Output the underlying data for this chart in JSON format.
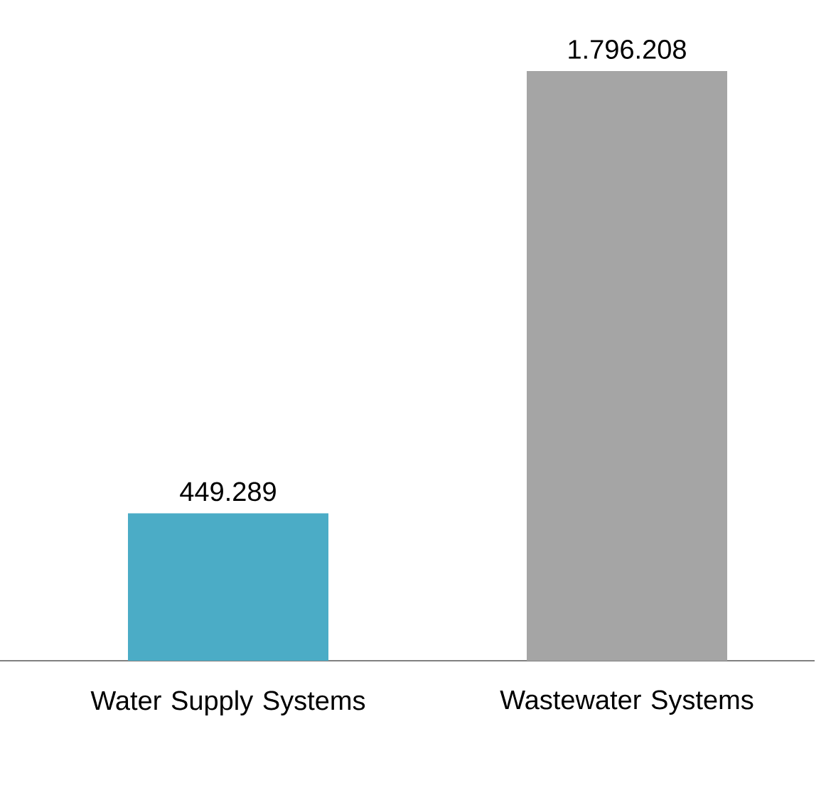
{
  "chart_data": {
    "type": "bar",
    "categories": [
      "Water Supply Systems",
      "Wastewater Systems"
    ],
    "values": [
      449289,
      1796208
    ],
    "colors": [
      "#4bacc6",
      "#a5a5a5"
    ],
    "value_labels": [
      "449.289",
      "1.796.208"
    ]
  }
}
